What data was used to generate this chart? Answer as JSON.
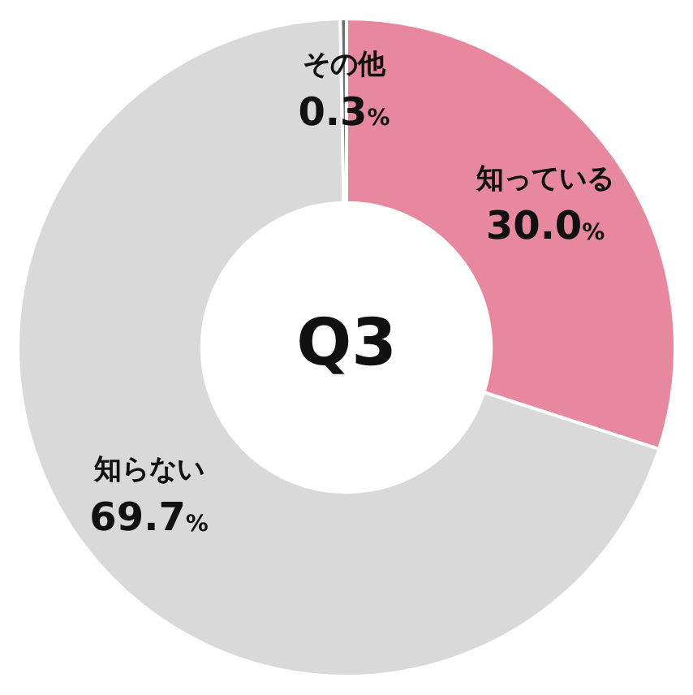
{
  "chart_data": {
    "type": "donut",
    "title": "Q3",
    "categories": [
      "知っている",
      "知らない",
      "その他"
    ],
    "values": [
      30.0,
      69.7,
      0.3
    ],
    "colors": [
      "#e8889f",
      "#d9d9d9",
      "#6e6e6e"
    ],
    "value_labels": [
      "30.0%",
      "69.7%",
      "0.3%"
    ],
    "legend": false
  }
}
